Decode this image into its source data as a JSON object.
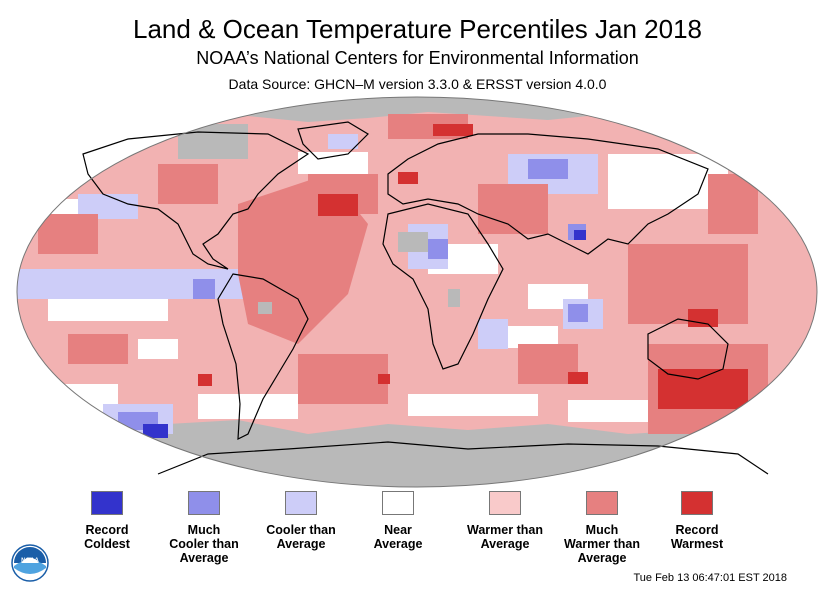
{
  "header": {
    "title": "Land & Ocean Temperature Percentiles Jan 2018",
    "subtitle": "NOAA’s National Centers for Environmental Information",
    "source": "Data Source: GHCN–M version 3.3.0 & ERSST version 4.0.0"
  },
  "legend": {
    "items": [
      {
        "label": "Record\nColdest",
        "color": "#3333cc"
      },
      {
        "label": "Much\nCooler than\nAverage",
        "color": "#8f8fea"
      },
      {
        "label": "Cooler than\nAverage",
        "color": "#cdcdf8"
      },
      {
        "label": "Near\nAverage",
        "color": "#ffffff"
      },
      {
        "label": "Warmer than\nAverage",
        "color": "#f9caca"
      },
      {
        "label": "Much\nWarmer than\nAverage",
        "color": "#e68080"
      },
      {
        "label": "Record\nWarmest",
        "color": "#d43131"
      }
    ]
  },
  "map": {
    "projection": "Robinson",
    "colors": {
      "ocean_background": "#f2b2b2",
      "no_data": "#b9b9b9",
      "coastline": "#000000"
    }
  },
  "footer": {
    "timestamp": "Tue Feb 13 06:47:01 EST 2018",
    "logo_text": "NOAA"
  }
}
